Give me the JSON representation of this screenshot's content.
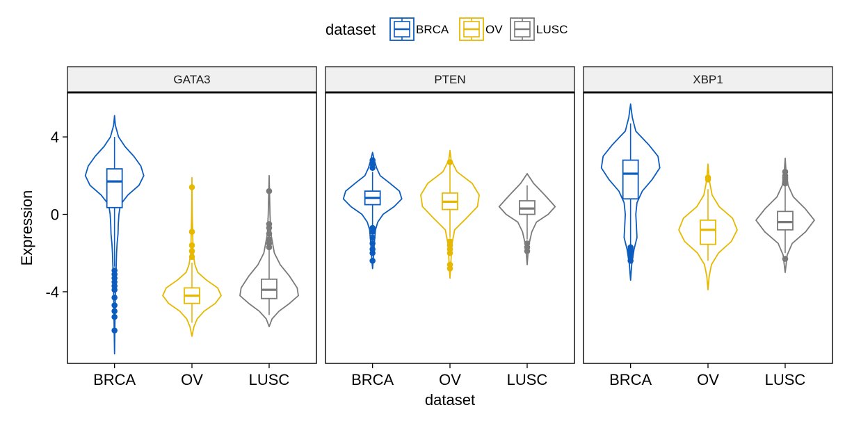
{
  "chart_data": {
    "type": "violin",
    "xlabel": "dataset",
    "ylabel": "Expression",
    "ylim": [
      -7.7,
      6.3
    ],
    "yticks": [
      4,
      0,
      -4
    ],
    "yticklabels": [
      "4",
      "0",
      "-4"
    ],
    "categories": [
      "BRCA",
      "OV",
      "LUSC"
    ],
    "legend": {
      "title": "dataset",
      "position": "top",
      "entries": [
        "BRCA",
        "OV",
        "LUSC"
      ]
    },
    "colors": {
      "BRCA": "#0b5cbe",
      "OV": "#e7b800",
      "LUSC": "#7a7a7a"
    },
    "panels": [
      {
        "title": "GATA3",
        "groups": [
          {
            "name": "BRCA",
            "q1": 0.35,
            "median": 1.7,
            "q3": 2.35,
            "whisker_low": -2.7,
            "whisker_high": 4.0,
            "outliers": [
              -2.9,
              -3.1,
              -3.3,
              -3.5,
              -3.7,
              -3.9,
              -4.3,
              -4.7,
              -5.0,
              -5.3,
              -6.0
            ],
            "violin": [
              [
                5.1,
                0
              ],
              [
                4.6,
                0.03
              ],
              [
                4.0,
                0.14
              ],
              [
                3.5,
                0.36
              ],
              [
                3.0,
                0.66
              ],
              [
                2.5,
                0.9
              ],
              [
                2.0,
                1.0
              ],
              [
                1.5,
                0.84
              ],
              [
                1.0,
                0.46
              ],
              [
                0.5,
                0.2
              ],
              [
                0.0,
                0.15
              ],
              [
                -0.5,
                0.13
              ],
              [
                -1.0,
                0.12
              ],
              [
                -1.5,
                0.09
              ],
              [
                -2.0,
                0.07
              ],
              [
                -3.0,
                0.05
              ],
              [
                -4.0,
                0.03
              ],
              [
                -5.0,
                0.02
              ],
              [
                -6.0,
                0.01
              ],
              [
                -7.2,
                0
              ]
            ]
          },
          {
            "name": "OV",
            "q1": -4.6,
            "median": -4.2,
            "q3": -3.8,
            "whisker_low": -5.6,
            "whisker_high": -2.5,
            "outliers": [
              1.4,
              -0.9,
              -1.6,
              -1.9,
              -2.2
            ],
            "violin": [
              [
                1.9,
                0
              ],
              [
                0.0,
                0.01
              ],
              [
                -2.0,
                0.04
              ],
              [
                -2.6,
                0.1
              ],
              [
                -3.0,
                0.2
              ],
              [
                -3.4,
                0.5
              ],
              [
                -3.8,
                0.88
              ],
              [
                -4.2,
                1.0
              ],
              [
                -4.6,
                0.8
              ],
              [
                -5.0,
                0.42
              ],
              [
                -5.4,
                0.18
              ],
              [
                -5.8,
                0.07
              ],
              [
                -6.3,
                0
              ]
            ]
          },
          {
            "name": "LUSC",
            "q1": -4.35,
            "median": -3.9,
            "q3": -3.35,
            "whisker_low": -5.2,
            "whisker_high": -1.8,
            "outliers": [
              1.2,
              -0.5,
              -0.7,
              -1.0,
              -1.3,
              -1.5,
              -1.7
            ],
            "violin": [
              [
                2.0,
                0
              ],
              [
                0.0,
                0.03
              ],
              [
                -1.0,
                0.06
              ],
              [
                -2.0,
                0.18
              ],
              [
                -2.6,
                0.38
              ],
              [
                -3.2,
                0.7
              ],
              [
                -3.8,
                0.96
              ],
              [
                -4.2,
                1.0
              ],
              [
                -4.6,
                0.7
              ],
              [
                -5.0,
                0.34
              ],
              [
                -5.4,
                0.1
              ],
              [
                -5.8,
                0
              ]
            ]
          }
        ]
      },
      {
        "title": "PTEN",
        "groups": [
          {
            "name": "BRCA",
            "q1": 0.5,
            "median": 0.85,
            "q3": 1.2,
            "whisker_low": -0.6,
            "whisker_high": 2.2,
            "outliers": [
              2.4,
              2.6,
              2.8,
              -0.7,
              -0.9,
              -1.2,
              -1.5,
              -1.8,
              -2.0,
              -2.4
            ],
            "violin": [
              [
                3.2,
                0
              ],
              [
                2.8,
                0.06
              ],
              [
                2.4,
                0.14
              ],
              [
                2.0,
                0.26
              ],
              [
                1.6,
                0.6
              ],
              [
                1.2,
                0.92
              ],
              [
                0.8,
                1.0
              ],
              [
                0.4,
                0.74
              ],
              [
                0.0,
                0.36
              ],
              [
                -0.4,
                0.18
              ],
              [
                -0.8,
                0.1
              ],
              [
                -1.5,
                0.06
              ],
              [
                -2.2,
                0.03
              ],
              [
                -2.8,
                0
              ]
            ]
          },
          {
            "name": "OV",
            "q1": 0.25,
            "median": 0.65,
            "q3": 1.1,
            "whisker_low": -1.2,
            "whisker_high": 2.6,
            "outliers": [
              2.7,
              -1.4,
              -1.6,
              -1.8,
              -2.0,
              -2.6,
              -2.8
            ],
            "violin": [
              [
                3.3,
                0
              ],
              [
                2.8,
                0.04
              ],
              [
                2.2,
                0.24
              ],
              [
                1.6,
                0.76
              ],
              [
                1.0,
                1.0
              ],
              [
                0.4,
                0.94
              ],
              [
                -0.2,
                0.56
              ],
              [
                -0.8,
                0.16
              ],
              [
                -1.6,
                0.06
              ],
              [
                -2.5,
                0.03
              ],
              [
                -3.3,
                0
              ]
            ]
          },
          {
            "name": "LUSC",
            "q1": 0.0,
            "median": 0.3,
            "q3": 0.7,
            "whisker_low": -1.3,
            "whisker_high": 1.5,
            "outliers": [
              -1.5,
              -1.7,
              -1.9
            ],
            "violin": [
              [
                2.1,
                0
              ],
              [
                1.6,
                0.22
              ],
              [
                1.0,
                0.6
              ],
              [
                0.4,
                0.96
              ],
              [
                0.0,
                0.72
              ],
              [
                -0.4,
                0.32
              ],
              [
                -0.9,
                0.16
              ],
              [
                -1.5,
                0.07
              ],
              [
                -2.0,
                0.03
              ],
              [
                -2.6,
                0
              ]
            ]
          }
        ]
      },
      {
        "title": "XBP1",
        "groups": [
          {
            "name": "BRCA",
            "q1": 0.8,
            "median": 2.1,
            "q3": 2.8,
            "whisker_low": -1.6,
            "whisker_high": 4.7,
            "outliers": [
              -1.7,
              -1.8,
              -1.9,
              -2.0,
              -2.2,
              -2.4
            ],
            "violin": [
              [
                5.7,
                0
              ],
              [
                5.0,
                0.06
              ],
              [
                4.3,
                0.18
              ],
              [
                3.6,
                0.62
              ],
              [
                3.0,
                0.94
              ],
              [
                2.4,
                1.0
              ],
              [
                1.8,
                0.74
              ],
              [
                1.2,
                0.4
              ],
              [
                0.6,
                0.22
              ],
              [
                0.0,
                0.18
              ],
              [
                -0.6,
                0.2
              ],
              [
                -1.2,
                0.22
              ],
              [
                -1.8,
                0.12
              ],
              [
                -2.6,
                0.04
              ],
              [
                -3.4,
                0
              ]
            ]
          },
          {
            "name": "OV",
            "q1": -1.55,
            "median": -0.8,
            "q3": -0.3,
            "whisker_low": -2.4,
            "whisker_high": 1.3,
            "outliers": [
              1.8,
              1.9
            ],
            "violin": [
              [
                2.6,
                0
              ],
              [
                1.8,
                0.04
              ],
              [
                1.0,
                0.14
              ],
              [
                0.4,
                0.38
              ],
              [
                -0.2,
                0.84
              ],
              [
                -0.8,
                1.0
              ],
              [
                -1.4,
                0.8
              ],
              [
                -2.0,
                0.36
              ],
              [
                -2.6,
                0.12
              ],
              [
                -3.2,
                0.04
              ],
              [
                -3.9,
                0
              ]
            ]
          },
          {
            "name": "LUSC",
            "q1": -0.8,
            "median": -0.4,
            "q3": 0.15,
            "whisker_low": -2.0,
            "whisker_high": 1.5,
            "outliers": [
              1.6,
              1.7,
              1.8,
              1.9,
              2.0,
              2.2,
              -2.3
            ],
            "violin": [
              [
                2.9,
                0
              ],
              [
                2.2,
                0.03
              ],
              [
                1.5,
                0.1
              ],
              [
                0.9,
                0.28
              ],
              [
                0.3,
                0.68
              ],
              [
                -0.3,
                1.0
              ],
              [
                -0.9,
                0.7
              ],
              [
                -1.5,
                0.24
              ],
              [
                -2.1,
                0.07
              ],
              [
                -3.0,
                0
              ]
            ]
          }
        ]
      }
    ]
  }
}
